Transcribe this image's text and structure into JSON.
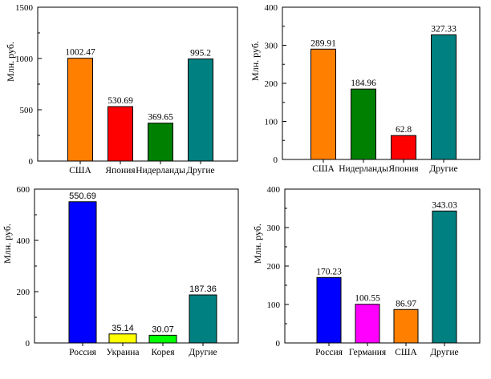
{
  "chart_data": [
    {
      "type": "bar",
      "ylabel": "Млн. руб.",
      "ylim": [
        0,
        1500
      ],
      "yticks": [
        "0",
        "500",
        "1000",
        "1500"
      ],
      "categories": [
        "США",
        "Япония",
        "Нидерланды",
        "Другие"
      ],
      "values": [
        1002.47,
        530.69,
        369.65,
        995.2
      ],
      "value_labels": [
        "1002.47",
        "530.69",
        "369.65",
        "995.2"
      ],
      "colors": [
        "#ff8000",
        "#ff0000",
        "#008000",
        "#008080"
      ],
      "grid": false
    },
    {
      "type": "bar",
      "ylabel": "Млн. руб.",
      "ylim": [
        0,
        400
      ],
      "yticks": [
        "0",
        "100",
        "200",
        "300",
        "400"
      ],
      "categories": [
        "США",
        "Нидерланды",
        "Япония",
        "Другие"
      ],
      "values": [
        289.91,
        184.96,
        62.8,
        327.33
      ],
      "value_labels": [
        "289.91",
        "184.96",
        "62.8",
        "327.33"
      ],
      "colors": [
        "#ff8000",
        "#008000",
        "#ff0000",
        "#008080"
      ],
      "grid": false
    },
    {
      "type": "bar",
      "ylabel": "Млн. руб.",
      "ylim": [
        0,
        600
      ],
      "yticks": [
        "0",
        "200",
        "400",
        "600"
      ],
      "categories": [
        "Россия",
        "Украина",
        "Корея",
        "Другие"
      ],
      "values": [
        550.69,
        35.14,
        30.07,
        187.36
      ],
      "value_labels": [
        "550.69",
        "35.14",
        "30.07",
        "187.36"
      ],
      "colors": [
        "#0000ff",
        "#ffff00",
        "#00ff00",
        "#008080"
      ],
      "grid": false
    },
    {
      "type": "bar",
      "ylabel": "Млн. руб.",
      "ylim": [
        0,
        400
      ],
      "yticks": [
        "0",
        "100",
        "200",
        "300",
        "400"
      ],
      "categories": [
        "Россия",
        "Германия",
        "США",
        "Другие"
      ],
      "values": [
        170.23,
        100.55,
        86.97,
        343.03
      ],
      "value_labels": [
        "170.23",
        "100.55",
        "86.97",
        "343.03"
      ],
      "colors": [
        "#0000ff",
        "#ff00ff",
        "#ff8000",
        "#008080"
      ],
      "grid": false
    }
  ]
}
